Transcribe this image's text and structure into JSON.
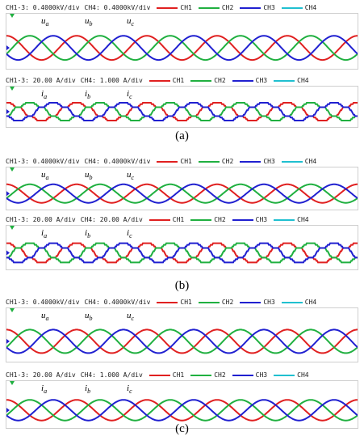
{
  "figures": [
    {
      "caption": "(a)",
      "panels": [
        {
          "scale_left": "CH1-3: 0.4000kV/div",
          "scale_right": "CH4: 0.4000kV/div",
          "labels": [
            {
              "base": "u",
              "sub": "a"
            },
            {
              "base": "u",
              "sub": "b"
            },
            {
              "base": "u",
              "sub": "c"
            }
          ],
          "waveform": "clean"
        },
        {
          "scale_left": "CH1-3: 20.00 A/div",
          "scale_right": "CH4: 1.000 A/div",
          "labels": [
            {
              "base": "i",
              "sub": "a"
            },
            {
              "base": "i",
              "sub": "b"
            },
            {
              "base": "i",
              "sub": "c"
            }
          ],
          "waveform": "stepped"
        }
      ]
    },
    {
      "caption": "(b)",
      "panels": [
        {
          "scale_left": "CH1-3: 0.4000kV/div",
          "scale_right": "CH4: 0.4000kV/div",
          "labels": [
            {
              "base": "u",
              "sub": "a"
            },
            {
              "base": "u",
              "sub": "b"
            },
            {
              "base": "u",
              "sub": "c"
            }
          ],
          "waveform": "clean"
        },
        {
          "scale_left": "CH1-3: 20.00 A/div",
          "scale_right": "CH4: 20.00 A/div",
          "labels": [
            {
              "base": "i",
              "sub": "a"
            },
            {
              "base": "i",
              "sub": "b"
            },
            {
              "base": "i",
              "sub": "c"
            }
          ],
          "waveform": "stepped"
        }
      ]
    },
    {
      "caption": "(c)",
      "panels": [
        {
          "scale_left": "CH1-3: 0.4000kV/div",
          "scale_right": "CH4: 0.4000kV/div",
          "labels": [
            {
              "base": "u",
              "sub": "a"
            },
            {
              "base": "u",
              "sub": "b"
            },
            {
              "base": "u",
              "sub": "c"
            }
          ],
          "waveform": "clean"
        },
        {
          "scale_left": "CH1-3: 20.00 A/div",
          "scale_right": "CH4: 1.000 A/div",
          "labels": [
            {
              "base": "i",
              "sub": "a"
            },
            {
              "base": "i",
              "sub": "b"
            },
            {
              "base": "i",
              "sub": "c"
            }
          ],
          "waveform": "clean"
        }
      ]
    }
  ],
  "legend": [
    {
      "name": "CH1",
      "color": "#e02020"
    },
    {
      "name": "CH2",
      "color": "#20b040"
    },
    {
      "name": "CH3",
      "color": "#2020d0"
    },
    {
      "name": "CH4",
      "color": "#20c0d0"
    }
  ],
  "marker_color": "#20b040",
  "chart_data": {
    "type": "line",
    "series": [
      {
        "name": "CH1",
        "phase_deg": 0
      },
      {
        "name": "CH2",
        "phase_deg": -120
      },
      {
        "name": "CH3",
        "phase_deg": 120
      }
    ],
    "cycles_shown": 5,
    "grid": false
  }
}
